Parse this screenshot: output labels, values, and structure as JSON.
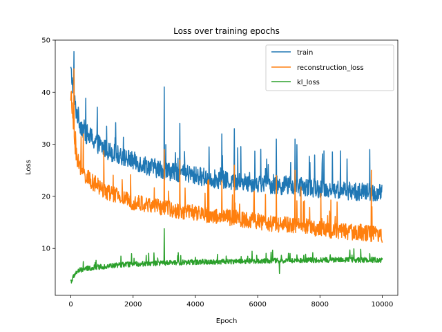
{
  "chart_data": {
    "type": "line",
    "title": "Loss over training epochs",
    "xlabel": "Epoch",
    "ylabel": "Loss",
    "xlim": [
      -500,
      10500
    ],
    "ylim": [
      1,
      50
    ],
    "xticks": [
      0,
      2000,
      4000,
      6000,
      8000,
      10000
    ],
    "yticks": [
      10,
      20,
      30,
      40,
      50
    ],
    "grid": false,
    "legend_position": "upper right",
    "series": [
      {
        "name": "train",
        "color": "#1f77b4",
        "x": [
          0,
          25,
          50,
          75,
          100,
          125,
          150,
          200,
          250,
          300,
          400,
          500,
          600,
          800,
          1000,
          1200,
          1500,
          1800,
          2000,
          2500,
          3000,
          3500,
          4000,
          4500,
          5000,
          5500,
          6000,
          6500,
          7000,
          7500,
          8000,
          8500,
          9000,
          9500,
          10000
        ],
        "y": [
          44,
          43,
          42,
          41,
          40,
          38,
          37,
          36,
          35,
          34,
          33,
          32,
          31.5,
          30.5,
          29.5,
          28.8,
          28,
          27.3,
          26.8,
          25.8,
          25,
          24.5,
          24,
          23.5,
          23,
          22.8,
          22.5,
          22.2,
          22,
          21.8,
          21.5,
          21.3,
          21,
          20.8,
          20.5
        ],
        "band": [
          2,
          2,
          2,
          2,
          2,
          2,
          2,
          2,
          2,
          2,
          2,
          2,
          2,
          2,
          1.8,
          1.8,
          1.8,
          1.8,
          1.8,
          1.8,
          1.8,
          1.8,
          1.8,
          1.8,
          1.8,
          1.8,
          1.8,
          1.8,
          1.8,
          1.8,
          1.8,
          1.8,
          1.8,
          1.8,
          1.8
        ],
        "spikes": [
          [
            100,
            47.8
          ],
          [
            3000,
            41
          ],
          [
            3500,
            34
          ],
          [
            4850,
            32
          ],
          [
            5250,
            33
          ],
          [
            6600,
            31
          ],
          [
            7200,
            31
          ],
          [
            9600,
            29
          ]
        ]
      },
      {
        "name": "reconstruction_loss",
        "color": "#ff7f0e",
        "x": [
          0,
          25,
          50,
          75,
          100,
          125,
          150,
          200,
          250,
          300,
          400,
          500,
          600,
          800,
          1000,
          1200,
          1500,
          1800,
          2000,
          2500,
          3000,
          3500,
          4000,
          4500,
          5000,
          5500,
          6000,
          6500,
          7000,
          7500,
          8000,
          8500,
          9000,
          9500,
          10000
        ],
        "y": [
          40,
          38,
          36,
          34,
          32,
          30.5,
          29,
          27.5,
          26.5,
          25.5,
          24.5,
          23.8,
          23.2,
          22.3,
          21.5,
          20.8,
          20,
          19.3,
          19,
          18.3,
          17.8,
          17.2,
          16.8,
          16.3,
          16,
          15.6,
          15.2,
          14.8,
          14.5,
          14.2,
          13.8,
          13.5,
          13.2,
          13,
          12.5
        ],
        "band": [
          2,
          2,
          2,
          2,
          1.8,
          1.8,
          1.8,
          1.8,
          1.8,
          1.6,
          1.6,
          1.6,
          1.6,
          1.6,
          1.6,
          1.6,
          1.6,
          1.6,
          1.6,
          1.6,
          1.6,
          1.6,
          1.6,
          1.6,
          1.6,
          1.6,
          1.6,
          1.6,
          1.6,
          1.6,
          1.6,
          1.6,
          1.6,
          1.6,
          1.6
        ],
        "spikes": [
          [
            100,
            44.5
          ],
          [
            400,
            32
          ],
          [
            3000,
            29
          ],
          [
            3500,
            27
          ],
          [
            4850,
            23
          ],
          [
            5250,
            26
          ],
          [
            6600,
            24
          ],
          [
            7200,
            25
          ],
          [
            9650,
            25
          ]
        ]
      },
      {
        "name": "kl_loss",
        "color": "#2ca02c",
        "x": [
          0,
          25,
          50,
          75,
          100,
          150,
          200,
          300,
          400,
          500,
          600,
          800,
          1000,
          1500,
          2000,
          2500,
          3000,
          4000,
          5000,
          6000,
          7000,
          8000,
          9000,
          10000
        ],
        "y": [
          3.8,
          3.8,
          4,
          4.4,
          4.8,
          5.2,
          5.5,
          5.8,
          6,
          6.1,
          6.2,
          6.4,
          6.5,
          6.8,
          7,
          7.1,
          7.2,
          7.4,
          7.5,
          7.6,
          7.7,
          7.8,
          7.8,
          7.8
        ],
        "band": [
          0.5,
          0.5,
          0.5,
          0.5,
          0.5,
          0.5,
          0.5,
          0.5,
          0.5,
          0.5,
          0.5,
          0.5,
          0.5,
          0.5,
          0.5,
          0.5,
          0.5,
          0.5,
          0.5,
          0.5,
          0.5,
          0.5,
          0.5,
          0.5
        ],
        "spikes": [
          [
            400,
            7.5
          ],
          [
            1950,
            9
          ],
          [
            3000,
            13.8
          ],
          [
            3450,
            9.2
          ],
          [
            6700,
            5.2
          ],
          [
            9600,
            9
          ]
        ]
      }
    ]
  }
}
